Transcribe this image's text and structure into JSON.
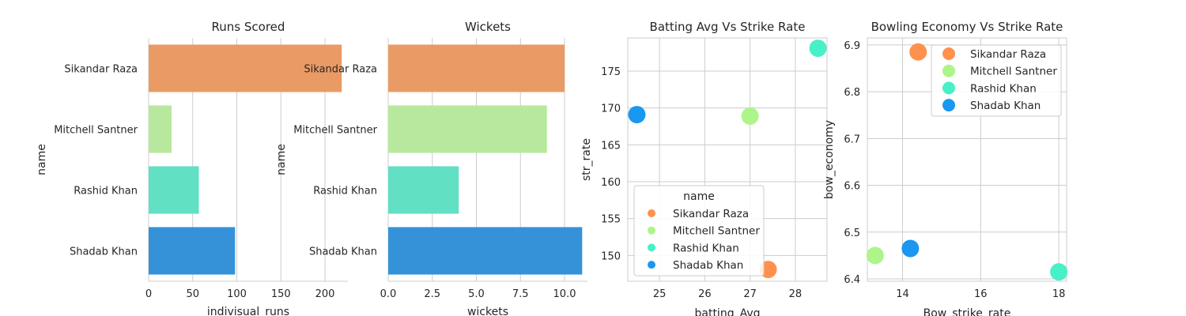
{
  "chart_data": [
    {
      "type": "bar",
      "orientation": "horizontal",
      "title": "Runs Scored",
      "xlabel": "indivisual_runs",
      "ylabel": "name",
      "categories": [
        "Sikandar Raza",
        "Mitchell Santner",
        "Rashid Khan",
        "Shadab Khan"
      ],
      "values": [
        219,
        26,
        57,
        98
      ],
      "xlim": [
        0,
        226
      ],
      "xticks": [
        0,
        50,
        100,
        150,
        200
      ],
      "grid": true
    },
    {
      "type": "bar",
      "orientation": "horizontal",
      "title": "Wickets",
      "xlabel": "wickets",
      "ylabel": "name",
      "categories": [
        "Sikandar Raza",
        "Mitchell Santner",
        "Rashid Khan",
        "Shadab Khan"
      ],
      "values": [
        10,
        9,
        4,
        11
      ],
      "xlim": [
        0,
        11.3
      ],
      "xticks": [
        0.0,
        2.5,
        5.0,
        7.5,
        10.0
      ],
      "grid": true
    },
    {
      "type": "scatter",
      "title": "Batting Avg Vs Strike Rate",
      "xlabel": "batting_Avg",
      "ylabel": "str_rate",
      "points": [
        {
          "name": "Sikandar Raza",
          "x": 27.4,
          "y": 148.1
        },
        {
          "name": "Mitchell Santner",
          "x": 27.0,
          "y": 168.9
        },
        {
          "name": "Rashid Khan",
          "x": 28.5,
          "y": 178.1
        },
        {
          "name": "Shadab Khan",
          "x": 24.5,
          "y": 169.1
        }
      ],
      "xlim": [
        24.3,
        28.7
      ],
      "ylim": [
        146.5,
        179.5
      ],
      "xticks": [
        25,
        26,
        27,
        28
      ],
      "yticks": [
        150,
        155,
        160,
        165,
        170,
        175
      ],
      "legend": {
        "title": "name",
        "location": "lower-left"
      },
      "grid": true
    },
    {
      "type": "scatter",
      "title": "Bowling Economy Vs Strike Rate",
      "xlabel": "Bow_strike_rate",
      "ylabel": "bow_economy",
      "points": [
        {
          "name": "Sikandar Raza",
          "x": 14.4,
          "y": 6.885
        },
        {
          "name": "Mitchell Santner",
          "x": 13.3,
          "y": 6.45
        },
        {
          "name": "Rashid Khan",
          "x": 18.0,
          "y": 6.415
        },
        {
          "name": "Shadab Khan",
          "x": 14.2,
          "y": 6.465
        }
      ],
      "xlim": [
        13.1,
        18.2
      ],
      "ylim": [
        6.395,
        6.915
      ],
      "xticks": [
        14,
        16,
        18
      ],
      "yticks": [
        6.4,
        6.5,
        6.6,
        6.7,
        6.8,
        6.9
      ],
      "legend": {
        "title": "",
        "location": "upper-right"
      },
      "grid": true
    }
  ],
  "colors": {
    "Sikandar Raza": "#ff914d",
    "Mitchell Santner": "#adf58a",
    "Rashid Khan": "#48f0c8",
    "Shadab Khan": "#1a97f0"
  },
  "bar_colors": [
    "#ea9a64",
    "#b8e89d",
    "#62e0c3",
    "#3692d8"
  ]
}
